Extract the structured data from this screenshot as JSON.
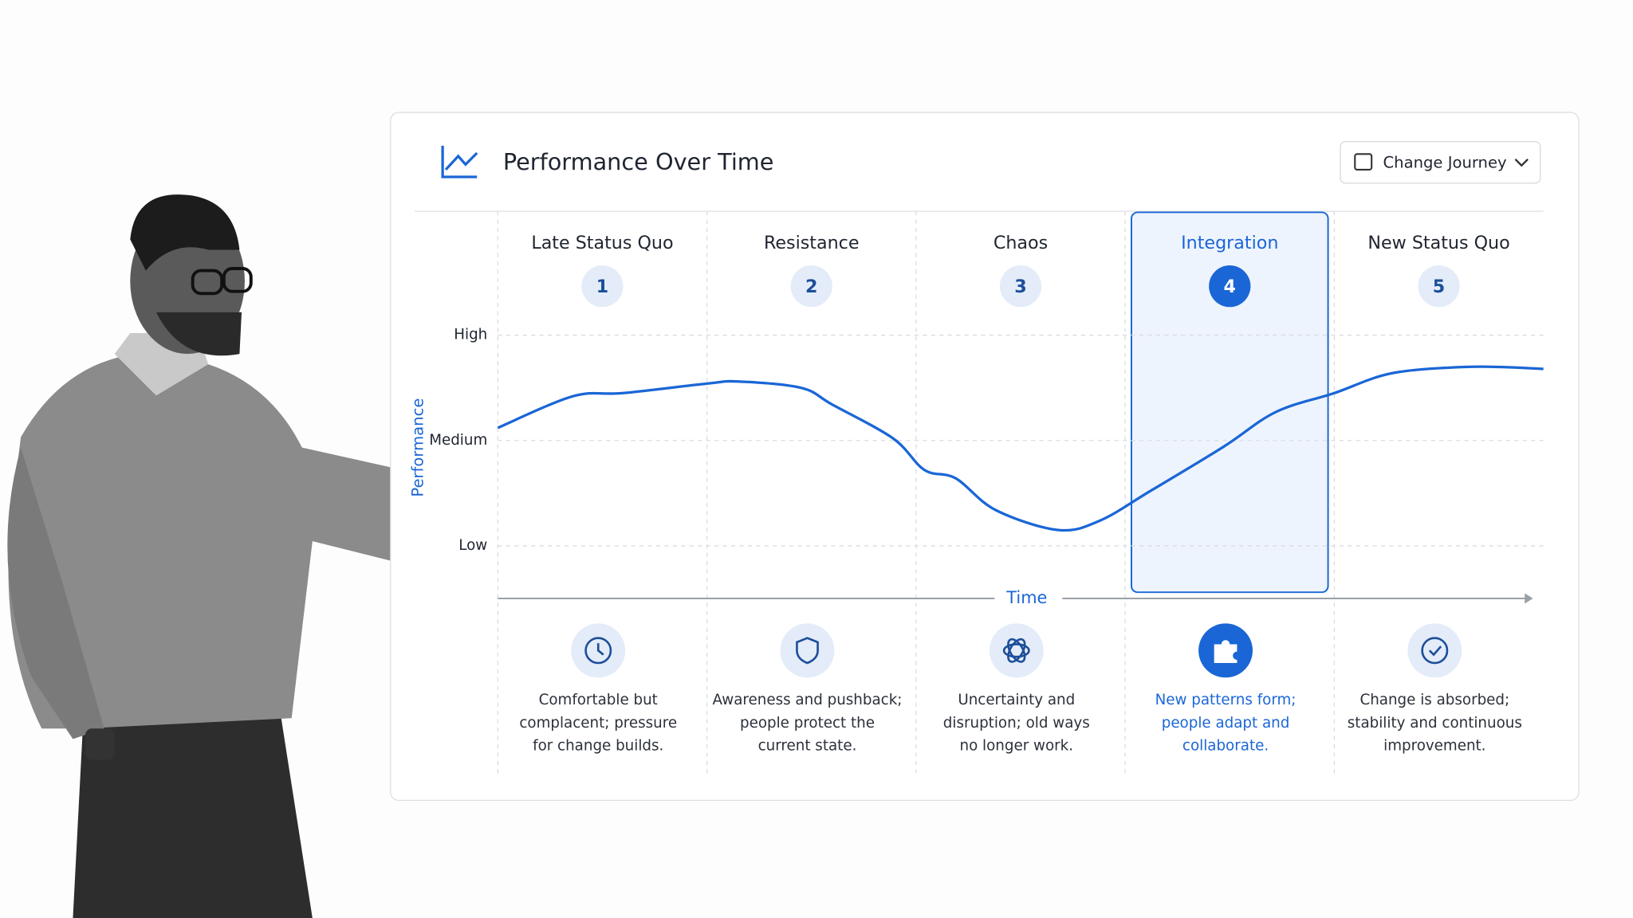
{
  "header": {
    "title": "Performance Over Time",
    "dropdown": "Change Journey"
  },
  "chart_data": {
    "type": "line",
    "y_label": "Performance",
    "x_label": "Time",
    "x": [
      0,
      0.36,
      0.6,
      1.0,
      1.15,
      1.45,
      1.6,
      1.89,
      2.04,
      2.19,
      2.38,
      2.68,
      2.88,
      3.12,
      3.47,
      3.72,
      4.0,
      4.28,
      4.66,
      5.0
    ],
    "values": [
      2.12,
      2.42,
      2.45,
      2.54,
      2.56,
      2.5,
      2.34,
      2.02,
      1.72,
      1.64,
      1.34,
      1.15,
      1.24,
      1.52,
      1.94,
      2.27,
      2.45,
      2.64,
      2.7,
      2.68
    ],
    "color": "#1a66d6",
    "xlim": [
      0,
      5
    ],
    "ylim": [
      0.5,
      3
    ],
    "yticks": [
      {
        "value": 1,
        "label": "Low"
      },
      {
        "value": 2,
        "label": "Medium"
      },
      {
        "value": 3,
        "label": "High"
      }
    ],
    "grid": true,
    "active_stage": 4,
    "stages": [
      {
        "title": "Late Status Quo",
        "step": 1,
        "description": [
          "Comfortable but",
          "complacent; pressure",
          "for change builds."
        ]
      },
      {
        "title": "Resistance",
        "step": 2,
        "description": [
          "Awareness and pushback;",
          "people protect the",
          "current state."
        ]
      },
      {
        "title": "Chaos",
        "step": 3,
        "description": [
          "Uncertainty and",
          "disruption; old ways",
          "no longer work."
        ]
      },
      {
        "title": "Integration",
        "step": 4,
        "description": [
          "New patterns form;",
          "people adapt and",
          "collaborate."
        ]
      },
      {
        "title": "New Status Quo",
        "step": 5,
        "description": [
          "Change is absorbed;",
          "stability and continuous",
          "improvement."
        ]
      }
    ]
  }
}
